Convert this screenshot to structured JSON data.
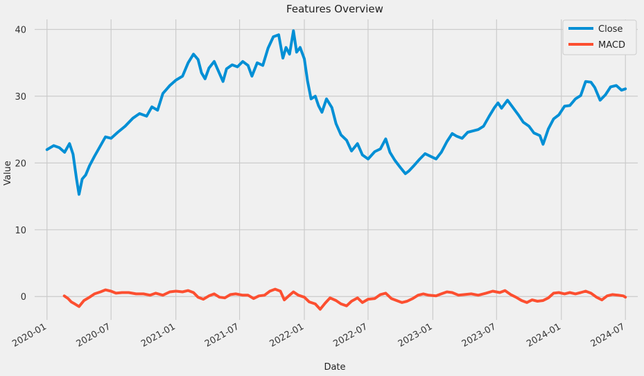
{
  "chart_data": {
    "type": "line",
    "title": "Features Overview",
    "xlabel": "Date",
    "ylabel": "Value",
    "xlim": [
      "2019-11-27",
      "2024-08-05"
    ],
    "ylim": [
      -3.5,
      41.5
    ],
    "grid": true,
    "legend_position": "top-right",
    "x_ticks": [
      "2020-01",
      "2020-07",
      "2021-01",
      "2021-07",
      "2022-01",
      "2022-07",
      "2023-01",
      "2023-07",
      "2024-01",
      "2024-07"
    ],
    "y_ticks": [
      0,
      10,
      20,
      30,
      40
    ],
    "series": [
      {
        "name": "Close",
        "color": "#008fd5",
        "points": [
          [
            "2020-01-01",
            22.0
          ],
          [
            "2020-01-20",
            22.6
          ],
          [
            "2020-02-05",
            22.3
          ],
          [
            "2020-02-20",
            21.6
          ],
          [
            "2020-03-05",
            22.9
          ],
          [
            "2020-03-15",
            21.3
          ],
          [
            "2020-03-25",
            17.6
          ],
          [
            "2020-04-01",
            15.3
          ],
          [
            "2020-04-10",
            17.6
          ],
          [
            "2020-04-20",
            18.2
          ],
          [
            "2020-05-01",
            19.6
          ],
          [
            "2020-05-15",
            21.0
          ],
          [
            "2020-06-01",
            22.6
          ],
          [
            "2020-06-15",
            23.9
          ],
          [
            "2020-07-01",
            23.7
          ],
          [
            "2020-07-20",
            24.6
          ],
          [
            "2020-08-10",
            25.5
          ],
          [
            "2020-09-01",
            26.7
          ],
          [
            "2020-09-20",
            27.4
          ],
          [
            "2020-10-10",
            27.0
          ],
          [
            "2020-10-25",
            28.4
          ],
          [
            "2020-11-10",
            27.9
          ],
          [
            "2020-11-25",
            30.4
          ],
          [
            "2020-12-15",
            31.6
          ],
          [
            "2021-01-01",
            32.4
          ],
          [
            "2021-01-20",
            33.0
          ],
          [
            "2021-02-05",
            35.0
          ],
          [
            "2021-02-20",
            36.3
          ],
          [
            "2021-03-05",
            35.5
          ],
          [
            "2021-03-15",
            33.5
          ],
          [
            "2021-03-25",
            32.6
          ],
          [
            "2021-04-05",
            34.2
          ],
          [
            "2021-04-20",
            35.2
          ],
          [
            "2021-05-05",
            33.4
          ],
          [
            "2021-05-15",
            32.2
          ],
          [
            "2021-05-25",
            34.1
          ],
          [
            "2021-06-10",
            34.7
          ],
          [
            "2021-06-25",
            34.4
          ],
          [
            "2021-07-10",
            35.2
          ],
          [
            "2021-07-25",
            34.6
          ],
          [
            "2021-08-05",
            33.0
          ],
          [
            "2021-08-20",
            35.0
          ],
          [
            "2021-09-05",
            34.6
          ],
          [
            "2021-09-20",
            37.2
          ],
          [
            "2021-10-05",
            38.9
          ],
          [
            "2021-10-20",
            39.2
          ],
          [
            "2021-11-01",
            35.7
          ],
          [
            "2021-11-10",
            37.3
          ],
          [
            "2021-11-20",
            36.3
          ],
          [
            "2021-12-01",
            39.8
          ],
          [
            "2021-12-10",
            36.6
          ],
          [
            "2021-12-20",
            37.3
          ],
          [
            "2022-01-01",
            35.6
          ],
          [
            "2022-01-10",
            32.3
          ],
          [
            "2022-01-20",
            29.6
          ],
          [
            "2022-02-01",
            30.0
          ],
          [
            "2022-02-10",
            28.6
          ],
          [
            "2022-02-20",
            27.6
          ],
          [
            "2022-03-05",
            29.6
          ],
          [
            "2022-03-20",
            28.3
          ],
          [
            "2022-04-01",
            25.9
          ],
          [
            "2022-04-15",
            24.2
          ],
          [
            "2022-05-01",
            23.4
          ],
          [
            "2022-05-15",
            21.8
          ],
          [
            "2022-06-01",
            22.9
          ],
          [
            "2022-06-15",
            21.2
          ],
          [
            "2022-07-01",
            20.6
          ],
          [
            "2022-07-20",
            21.7
          ],
          [
            "2022-08-05",
            22.1
          ],
          [
            "2022-08-20",
            23.6
          ],
          [
            "2022-09-01",
            21.6
          ],
          [
            "2022-09-15",
            20.4
          ],
          [
            "2022-10-01",
            19.3
          ],
          [
            "2022-10-15",
            18.4
          ],
          [
            "2022-10-25",
            18.8
          ],
          [
            "2022-11-10",
            19.7
          ],
          [
            "2022-11-25",
            20.6
          ],
          [
            "2022-12-10",
            21.4
          ],
          [
            "2022-12-25",
            21.0
          ],
          [
            "2023-01-10",
            20.6
          ],
          [
            "2023-01-25",
            21.6
          ],
          [
            "2023-02-10",
            23.2
          ],
          [
            "2023-02-25",
            24.4
          ],
          [
            "2023-03-10",
            24.0
          ],
          [
            "2023-03-25",
            23.7
          ],
          [
            "2023-04-10",
            24.6
          ],
          [
            "2023-04-25",
            24.8
          ],
          [
            "2023-05-10",
            25.0
          ],
          [
            "2023-05-25",
            25.5
          ],
          [
            "2023-06-10",
            27.0
          ],
          [
            "2023-06-25",
            28.3
          ],
          [
            "2023-07-05",
            29.0
          ],
          [
            "2023-07-15",
            28.2
          ],
          [
            "2023-08-01",
            29.4
          ],
          [
            "2023-08-15",
            28.4
          ],
          [
            "2023-09-01",
            27.2
          ],
          [
            "2023-09-15",
            26.1
          ],
          [
            "2023-10-01",
            25.5
          ],
          [
            "2023-10-15",
            24.5
          ],
          [
            "2023-11-01",
            24.1
          ],
          [
            "2023-11-10",
            22.8
          ],
          [
            "2023-11-25",
            25.1
          ],
          [
            "2023-12-10",
            26.6
          ],
          [
            "2023-12-25",
            27.2
          ],
          [
            "2024-01-10",
            28.5
          ],
          [
            "2024-01-25",
            28.6
          ],
          [
            "2024-02-10",
            29.6
          ],
          [
            "2024-02-25",
            30.1
          ],
          [
            "2024-03-10",
            32.2
          ],
          [
            "2024-03-25",
            32.1
          ],
          [
            "2024-04-05",
            31.3
          ],
          [
            "2024-04-20",
            29.4
          ],
          [
            "2024-05-05",
            30.2
          ],
          [
            "2024-05-20",
            31.4
          ],
          [
            "2024-06-05",
            31.6
          ],
          [
            "2024-06-20",
            30.9
          ],
          [
            "2024-07-01",
            31.1
          ]
        ]
      },
      {
        "name": "MACD",
        "color": "#fc4f30",
        "points": [
          [
            "2020-02-19",
            0.1
          ],
          [
            "2020-03-01",
            -0.3
          ],
          [
            "2020-03-10",
            -0.8
          ],
          [
            "2020-03-20",
            -1.1
          ],
          [
            "2020-04-01",
            -1.5
          ],
          [
            "2020-04-15",
            -0.6
          ],
          [
            "2020-05-01",
            -0.1
          ],
          [
            "2020-05-15",
            0.4
          ],
          [
            "2020-06-01",
            0.7
          ],
          [
            "2020-06-15",
            1.0
          ],
          [
            "2020-07-01",
            0.8
          ],
          [
            "2020-07-15",
            0.5
          ],
          [
            "2020-08-01",
            0.6
          ],
          [
            "2020-08-20",
            0.6
          ],
          [
            "2020-09-10",
            0.4
          ],
          [
            "2020-10-01",
            0.4
          ],
          [
            "2020-10-20",
            0.2
          ],
          [
            "2020-11-05",
            0.5
          ],
          [
            "2020-11-25",
            0.2
          ],
          [
            "2020-12-15",
            0.7
          ],
          [
            "2021-01-01",
            0.8
          ],
          [
            "2021-01-20",
            0.7
          ],
          [
            "2021-02-05",
            0.9
          ],
          [
            "2021-02-20",
            0.6
          ],
          [
            "2021-03-05",
            -0.1
          ],
          [
            "2021-03-20",
            -0.4
          ],
          [
            "2021-04-05",
            0.1
          ],
          [
            "2021-04-20",
            0.4
          ],
          [
            "2021-05-05",
            -0.1
          ],
          [
            "2021-05-20",
            -0.2
          ],
          [
            "2021-06-05",
            0.3
          ],
          [
            "2021-06-20",
            0.4
          ],
          [
            "2021-07-10",
            0.2
          ],
          [
            "2021-07-25",
            0.2
          ],
          [
            "2021-08-10",
            -0.3
          ],
          [
            "2021-08-25",
            0.1
          ],
          [
            "2021-09-10",
            0.2
          ],
          [
            "2021-09-25",
            0.8
          ],
          [
            "2021-10-10",
            1.1
          ],
          [
            "2021-10-25",
            0.8
          ],
          [
            "2021-11-05",
            -0.5
          ],
          [
            "2021-11-20",
            0.2
          ],
          [
            "2021-12-01",
            0.7
          ],
          [
            "2021-12-15",
            0.2
          ],
          [
            "2022-01-01",
            -0.1
          ],
          [
            "2022-01-15",
            -0.8
          ],
          [
            "2022-02-01",
            -1.1
          ],
          [
            "2022-02-15",
            -1.9
          ],
          [
            "2022-03-01",
            -1.0
          ],
          [
            "2022-03-15",
            -0.2
          ],
          [
            "2022-04-01",
            -0.6
          ],
          [
            "2022-04-15",
            -1.1
          ],
          [
            "2022-05-01",
            -1.4
          ],
          [
            "2022-05-15",
            -0.7
          ],
          [
            "2022-06-01",
            -0.2
          ],
          [
            "2022-06-15",
            -0.9
          ],
          [
            "2022-07-01",
            -0.4
          ],
          [
            "2022-07-20",
            -0.3
          ],
          [
            "2022-08-05",
            0.3
          ],
          [
            "2022-08-20",
            0.5
          ],
          [
            "2022-09-05",
            -0.3
          ],
          [
            "2022-09-20",
            -0.6
          ],
          [
            "2022-10-05",
            -0.9
          ],
          [
            "2022-10-20",
            -0.7
          ],
          [
            "2022-11-05",
            -0.3
          ],
          [
            "2022-11-20",
            0.2
          ],
          [
            "2022-12-05",
            0.4
          ],
          [
            "2022-12-20",
            0.2
          ],
          [
            "2023-01-10",
            0.1
          ],
          [
            "2023-01-25",
            0.4
          ],
          [
            "2023-02-10",
            0.7
          ],
          [
            "2023-02-25",
            0.6
          ],
          [
            "2023-03-15",
            0.2
          ],
          [
            "2023-04-01",
            0.3
          ],
          [
            "2023-04-20",
            0.4
          ],
          [
            "2023-05-10",
            0.2
          ],
          [
            "2023-06-01",
            0.5
          ],
          [
            "2023-06-20",
            0.8
          ],
          [
            "2023-07-10",
            0.6
          ],
          [
            "2023-07-25",
            0.9
          ],
          [
            "2023-08-10",
            0.3
          ],
          [
            "2023-08-25",
            -0.1
          ],
          [
            "2023-09-10",
            -0.6
          ],
          [
            "2023-09-25",
            -0.9
          ],
          [
            "2023-10-10",
            -0.5
          ],
          [
            "2023-10-25",
            -0.7
          ],
          [
            "2023-11-10",
            -0.6
          ],
          [
            "2023-11-25",
            -0.2
          ],
          [
            "2023-12-10",
            0.5
          ],
          [
            "2023-12-25",
            0.6
          ],
          [
            "2024-01-10",
            0.4
          ],
          [
            "2024-01-25",
            0.6
          ],
          [
            "2024-02-10",
            0.4
          ],
          [
            "2024-02-25",
            0.6
          ],
          [
            "2024-03-10",
            0.8
          ],
          [
            "2024-03-25",
            0.5
          ],
          [
            "2024-04-10",
            -0.1
          ],
          [
            "2024-04-25",
            -0.5
          ],
          [
            "2024-05-10",
            0.1
          ],
          [
            "2024-05-25",
            0.3
          ],
          [
            "2024-06-10",
            0.2
          ],
          [
            "2024-06-25",
            0.1
          ],
          [
            "2024-07-01",
            -0.1
          ]
        ]
      }
    ]
  }
}
